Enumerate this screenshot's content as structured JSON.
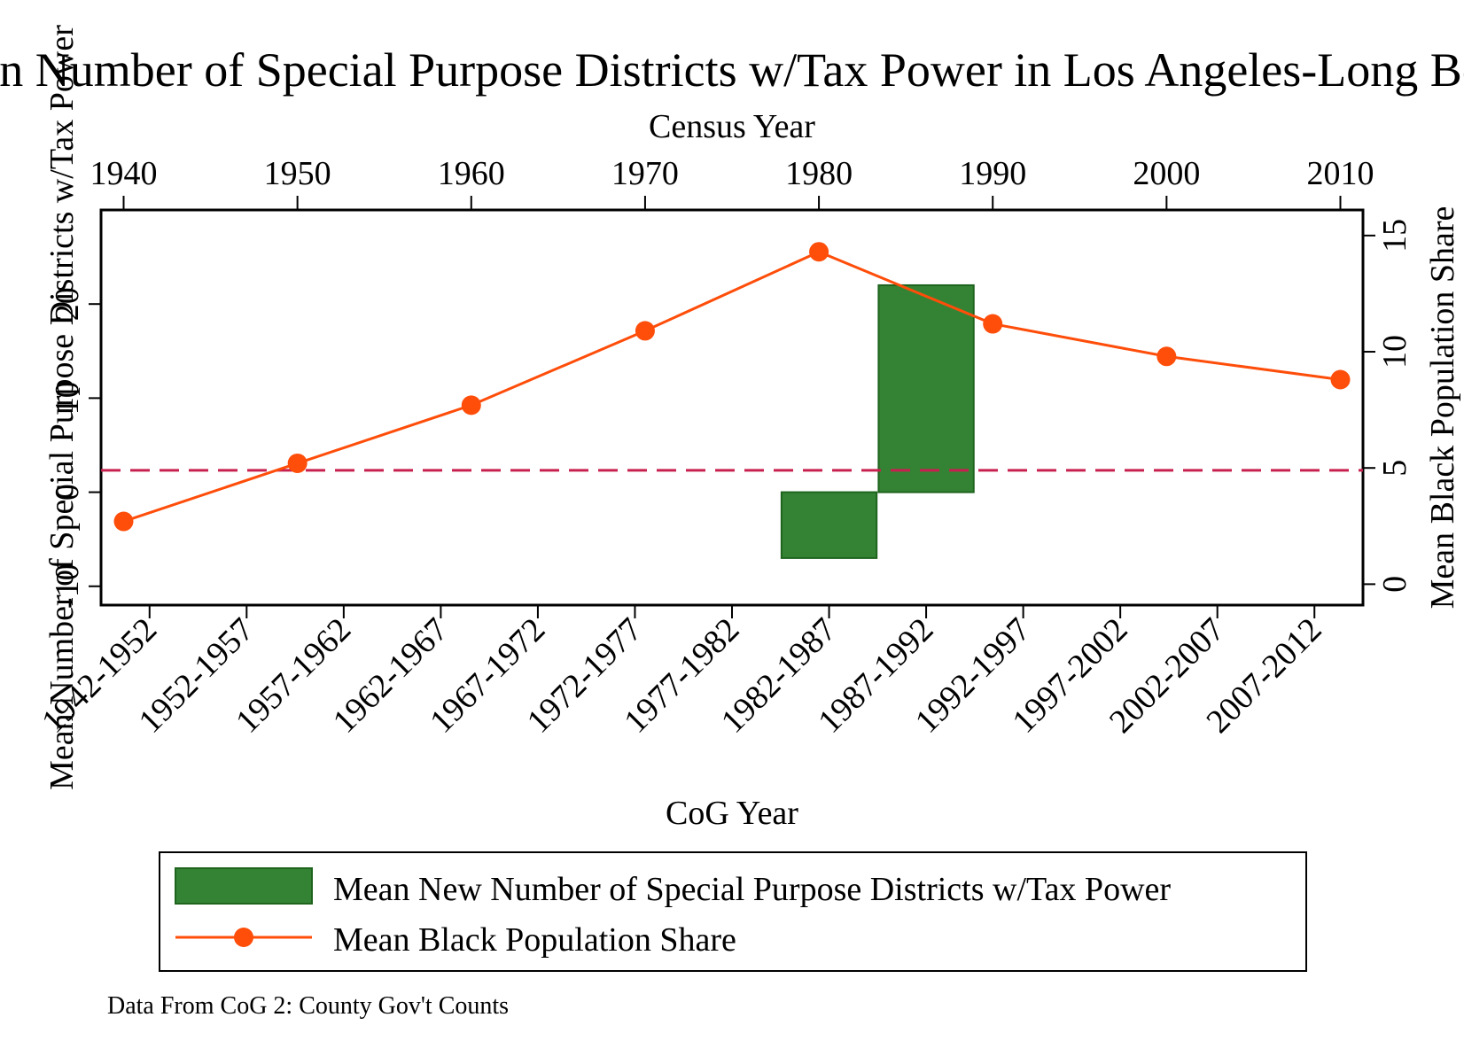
{
  "chart_data": {
    "type": "bar+line",
    "title": "Mean Number of Special Purpose Districts w/Tax Power in Los Angeles-Long Beach",
    "xlabel": "CoG Year",
    "x2label": "Census Year",
    "ylabel": "Mean Number of Special Purpose Districts w/Tax Power",
    "y2label": "Mean Black Population Share",
    "categories": [
      "1942-1952",
      "1952-1957",
      "1957-1962",
      "1962-1967",
      "1967-1972",
      "1972-1977",
      "1977-1982",
      "1982-1987",
      "1987-1992",
      "1992-1997",
      "1997-2002",
      "2002-2007",
      "2007-2012"
    ],
    "census_years": [
      1940,
      1950,
      1960,
      1970,
      1980,
      1990,
      2000,
      2010
    ],
    "ylim": [
      -12,
      30
    ],
    "yticks": [
      -10,
      0,
      10,
      20
    ],
    "y2lim": [
      -0.9,
      16.1
    ],
    "y2ticks": [
      0,
      5,
      10,
      15
    ],
    "x2lim": [
      1938.7,
      2011.3
    ],
    "reference_line": {
      "axis": "y2",
      "value": 4.9,
      "style": "dashed",
      "color": "#c8204e"
    },
    "series": [
      {
        "name": "Mean New Number of Special Purpose Districts w/Tax Power",
        "type": "bar",
        "axis": "y",
        "base": 0,
        "color": "#348334",
        "values": [
          0,
          0,
          0,
          0,
          0,
          0,
          0,
          -7,
          22,
          0,
          0,
          0,
          0
        ]
      },
      {
        "name": "Mean Black Population Share",
        "type": "line",
        "axis": "y2",
        "color": "#ff4d0a",
        "x": [
          1940,
          1950,
          1960,
          1970,
          1980,
          1990,
          2000,
          2010
        ],
        "values": [
          2.7,
          5.2,
          7.7,
          10.9,
          14.3,
          11.2,
          9.8,
          8.8
        ]
      }
    ],
    "legend": {
      "placement": "bottom",
      "entries": [
        "Mean New Number of Special Purpose Districts w/Tax Power",
        "Mean Black Population Share"
      ]
    },
    "note": "Data From CoG 2: County Gov't Counts",
    "grid": false
  }
}
